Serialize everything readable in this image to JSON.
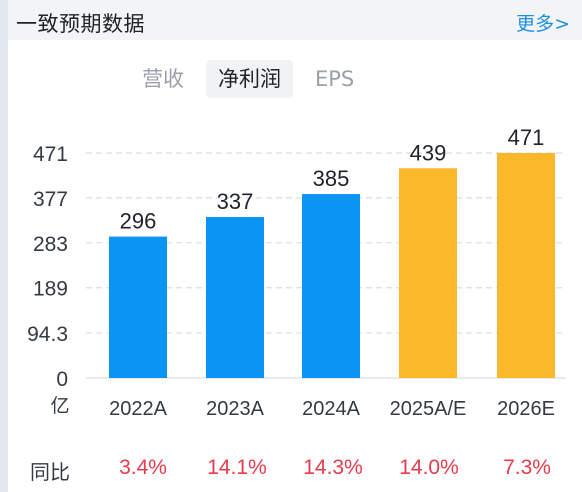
{
  "header": {
    "title": "一致预期数据",
    "more_label": "更多>"
  },
  "tabs": [
    {
      "label": "营收",
      "active": false
    },
    {
      "label": "净利润",
      "active": true
    },
    {
      "label": "EPS",
      "active": false
    }
  ],
  "colors": {
    "actual": "#0a95f5",
    "estimate": "#fbb829",
    "yoy": "#e53b4b",
    "grid": "#d9dde3"
  },
  "chart_data": {
    "type": "bar",
    "categories": [
      "2022A",
      "2023A",
      "2024A",
      "2025A/E",
      "2026E"
    ],
    "values": [
      296,
      337,
      385,
      439,
      471
    ],
    "value_labels": [
      "296",
      "337",
      "385",
      "439",
      "471"
    ],
    "estimate": [
      false,
      false,
      false,
      true,
      true
    ],
    "y_ticks": [
      "0",
      "94.3",
      "189",
      "283",
      "377",
      "471"
    ],
    "y_tick_values": [
      0,
      94.3,
      189,
      283,
      377,
      471
    ],
    "ylim": [
      0,
      471
    ],
    "unit_label": "亿",
    "grid": true
  },
  "yoy": {
    "label": "同比",
    "values": [
      "3.4%",
      "14.1%",
      "14.3%",
      "14.0%",
      "7.3%"
    ]
  }
}
